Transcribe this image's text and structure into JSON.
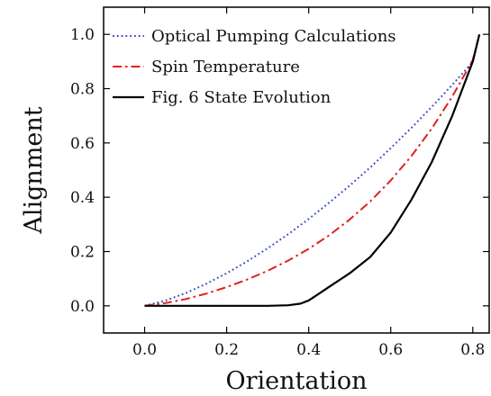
{
  "chart_data": {
    "type": "line",
    "xlabel": "Orientation",
    "ylabel": "Alignment",
    "xlim": [
      -0.1,
      0.84
    ],
    "ylim": [
      -0.1,
      1.1
    ],
    "xticks": [
      0.0,
      0.2,
      0.4,
      0.6,
      0.8
    ],
    "yticks": [
      0.0,
      0.2,
      0.4,
      0.6,
      0.8,
      1.0
    ],
    "xtick_labels": [
      "0.0",
      "0.2",
      "0.4",
      "0.6",
      "0.8"
    ],
    "ytick_labels": [
      "0.0",
      "0.2",
      "0.4",
      "0.6",
      "0.8",
      "1.0"
    ],
    "legend_position": "top-left",
    "series": [
      {
        "name": "Optical Pumping Calculations",
        "color": "#3b4cc0",
        "style": "dotted",
        "x": [
          0.0,
          0.05,
          0.1,
          0.15,
          0.2,
          0.25,
          0.3,
          0.35,
          0.4,
          0.45,
          0.5,
          0.55,
          0.6,
          0.65,
          0.7,
          0.75,
          0.8,
          0.816
        ],
        "y": [
          0.0,
          0.019,
          0.047,
          0.081,
          0.12,
          0.164,
          0.212,
          0.264,
          0.32,
          0.38,
          0.443,
          0.51,
          0.581,
          0.655,
          0.733,
          0.814,
          0.899,
          1.0
        ]
      },
      {
        "name": "Spin Temperature",
        "color": "#e02020",
        "style": "dashdot",
        "x": [
          0.0,
          0.05,
          0.1,
          0.15,
          0.2,
          0.25,
          0.3,
          0.35,
          0.4,
          0.45,
          0.5,
          0.55,
          0.6,
          0.65,
          0.7,
          0.75,
          0.8,
          0.816
        ],
        "y": [
          0.0,
          0.01,
          0.025,
          0.045,
          0.069,
          0.097,
          0.129,
          0.167,
          0.21,
          0.26,
          0.318,
          0.385,
          0.462,
          0.551,
          0.653,
          0.771,
          0.905,
          1.0
        ]
      },
      {
        "name": "Fig. 6 State Evolution",
        "color": "#000000",
        "style": "solid",
        "x": [
          0.0,
          0.05,
          0.1,
          0.2,
          0.3,
          0.35,
          0.38,
          0.4,
          0.42,
          0.45,
          0.5,
          0.55,
          0.6,
          0.65,
          0.7,
          0.75,
          0.8,
          0.816
        ],
        "y": [
          0.0,
          0.0,
          0.0,
          0.0,
          0.0,
          0.002,
          0.008,
          0.02,
          0.04,
          0.07,
          0.12,
          0.18,
          0.27,
          0.39,
          0.53,
          0.7,
          0.9,
          1.0
        ]
      }
    ]
  }
}
